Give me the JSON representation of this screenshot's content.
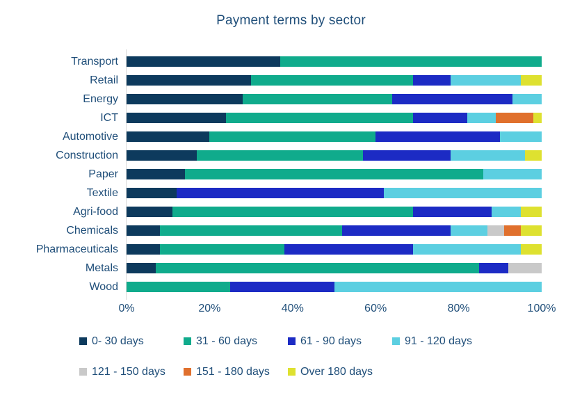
{
  "colors": {
    "text": "#1F4E79",
    "axis_line": "#D9D9D9",
    "background": "#FFFFFF"
  },
  "chart_data": {
    "type": "bar",
    "orientation": "horizontal",
    "stacked": true,
    "title": "Payment terms by sector",
    "xlabel": "",
    "ylabel": "",
    "unit": "%",
    "xlim": [
      0,
      100
    ],
    "grid": false,
    "legend_position": "bottom",
    "x_ticks": [
      {
        "label": "0%",
        "value": 0
      },
      {
        "label": "20%",
        "value": 20
      },
      {
        "label": "40%",
        "value": 40
      },
      {
        "label": "60%",
        "value": 60
      },
      {
        "label": "80%",
        "value": 80
      },
      {
        "label": "100%",
        "value": 100
      }
    ],
    "categories": [
      "Transport",
      "Retail",
      "Energy",
      "ICT",
      "Automotive",
      "Construction",
      "Paper",
      "Textile",
      "Agri-food",
      "Chemicals",
      "Pharmaceuticals",
      "Metals",
      "Wood"
    ],
    "series": [
      {
        "name": "0- 30 days",
        "color": "#0D3A5D",
        "values": [
          37,
          30,
          28,
          24,
          20,
          17,
          14,
          12,
          11,
          8,
          8,
          7,
          0
        ]
      },
      {
        "name": "31 - 60 days",
        "color": "#10AB8C",
        "values": [
          63,
          39,
          36,
          45,
          40,
          40,
          72,
          0,
          58,
          44,
          30,
          78,
          25
        ]
      },
      {
        "name": "61 - 90 days",
        "color": "#1C2BC4",
        "values": [
          0,
          9,
          29,
          13,
          30,
          21,
          0,
          50,
          19,
          26,
          31,
          7,
          25
        ]
      },
      {
        "name": "91 - 120 days",
        "color": "#5CCFE1",
        "values": [
          0,
          17,
          7,
          7,
          10,
          18,
          14,
          38,
          7,
          9,
          26,
          0,
          50
        ]
      },
      {
        "name": "121 - 150 days",
        "color": "#C9C9C9",
        "values": [
          0,
          0,
          0,
          0,
          0,
          0,
          0,
          0,
          0,
          4,
          0,
          8,
          0
        ]
      },
      {
        "name": "151 - 180 days",
        "color": "#E0702D",
        "values": [
          0,
          0,
          0,
          9,
          0,
          0,
          0,
          0,
          0,
          4,
          0,
          0,
          0
        ]
      },
      {
        "name": "Over 180 days",
        "color": "#DEE130",
        "values": [
          0,
          5,
          0,
          2,
          0,
          4,
          0,
          0,
          5,
          5,
          5,
          0,
          0
        ]
      }
    ],
    "legend_rows": [
      [
        0,
        1,
        2,
        3
      ],
      [
        4,
        5,
        6
      ]
    ]
  }
}
